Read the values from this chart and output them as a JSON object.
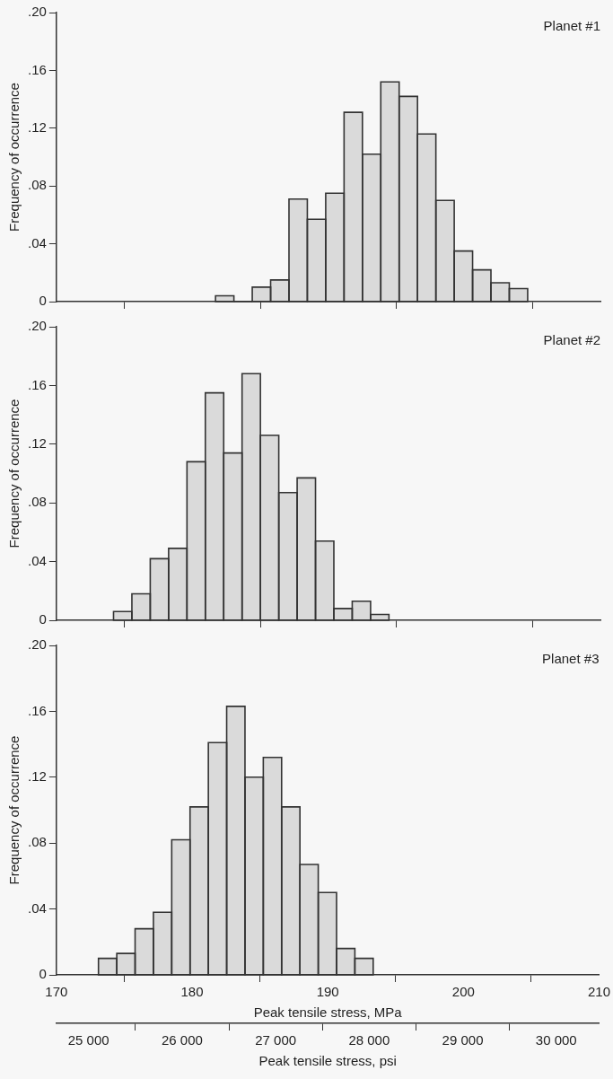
{
  "chart_data": [
    {
      "type": "histogram",
      "ylabel": "Frequency of occurrence",
      "annotations": [
        "Planet #1"
      ],
      "color": "#333333",
      "bins": [
        181.7,
        183.05,
        184.4,
        185.75,
        187.1,
        188.45,
        189.8,
        191.15,
        192.5,
        193.85,
        195.2,
        196.55,
        197.9,
        199.25,
        200.6,
        201.95,
        203.3,
        204.65
      ],
      "values": [
        0.004,
        0,
        0.01,
        0.015,
        0.071,
        0.057,
        0.075,
        0.131,
        0.102,
        0.152,
        0.142,
        0.116,
        0.07,
        0.035,
        0.022,
        0.013,
        0.009
      ],
      "xlim": [
        170,
        210
      ],
      "xticks": [
        170,
        180,
        190,
        200,
        210
      ],
      "ylim": [
        0,
        0.2
      ],
      "yticks": [
        {
          "value": 0,
          "label": "0"
        },
        {
          "value": 0.04,
          "label": ".04"
        },
        {
          "value": 0.08,
          "label": ".08"
        },
        {
          "value": 0.12,
          "label": ".12"
        },
        {
          "value": 0.16,
          "label": ".16"
        },
        {
          "value": 0.2,
          "label": ".20"
        }
      ],
      "tick_labels": "y"
    },
    {
      "type": "histogram",
      "ylabel": "Frequency of occurrence",
      "annotations": [
        "Planet #2"
      ],
      "color": "#333333",
      "bins": [
        174.2,
        175.55,
        176.9,
        178.25,
        179.6,
        180.95,
        182.3,
        183.65,
        185.0,
        186.35,
        187.7,
        189.05,
        190.4,
        191.75,
        193.1,
        194.45
      ],
      "values": [
        0.006,
        0.018,
        0.042,
        0.049,
        0.108,
        0.155,
        0.114,
        0.168,
        0.126,
        0.087,
        0.097,
        0.054,
        0.008,
        0.013,
        0.004
      ],
      "xlim": [
        170,
        210
      ],
      "xticks": [
        170,
        180,
        190,
        200,
        210
      ],
      "ylim": [
        0,
        0.2
      ],
      "yticks": [
        0,
        {
          "value": 0.04,
          "label": ".04"
        },
        {
          "value": 0.08,
          "label": ".08"
        },
        {
          "value": 0.12,
          "label": ".12"
        },
        {
          "value": 0.16,
          "label": ".16"
        },
        {
          "value": 0.2,
          "label": ".20"
        }
      ],
      "tick_labels": "y"
    },
    {
      "type": "histogram",
      "ylabel": "Frequency of occurrence",
      "xlabel": "Peak tensile stress, MPa",
      "x2label": "Peak tensile stress, psi",
      "annotations": [
        "Planet #3"
      ],
      "color": "#333333",
      "bins": [
        173.1,
        174.45,
        175.8,
        177.15,
        178.5,
        179.85,
        181.2,
        182.55,
        183.9,
        185.25,
        186.6,
        187.95,
        189.3,
        190.65,
        192.0,
        193.35
      ],
      "values": [
        0.01,
        0.013,
        0.028,
        0.038,
        0.082,
        0.102,
        0.141,
        0.163,
        0.12,
        0.132,
        0.102,
        0.067,
        0.05,
        0.016,
        0.01
      ],
      "xlim": [
        170,
        210
      ],
      "xticks": [
        170,
        180,
        190,
        200,
        210
      ],
      "ylim": [
        0,
        0.2
      ],
      "yticks": [
        0,
        {
          "value": 0.04,
          "label": ".04"
        },
        {
          "value": 0.08,
          "label": ".08"
        },
        {
          "value": 0.12,
          "label": ".12"
        },
        {
          "value": 0.16,
          "label": ".16"
        },
        {
          "value": 0.2,
          "label": ".20"
        }
      ],
      "x2lim": [
        24656,
        30458
      ],
      "x2ticks": [
        {
          "value": 25000,
          "label": "25 000"
        },
        {
          "value": 26000,
          "label": "26 000"
        },
        {
          "value": 27000,
          "label": "27 000"
        },
        {
          "value": 28000,
          "label": "28 000"
        },
        {
          "value": 29000,
          "label": "29 000"
        },
        {
          "value": 30000,
          "label": "30 000"
        }
      ]
    }
  ]
}
